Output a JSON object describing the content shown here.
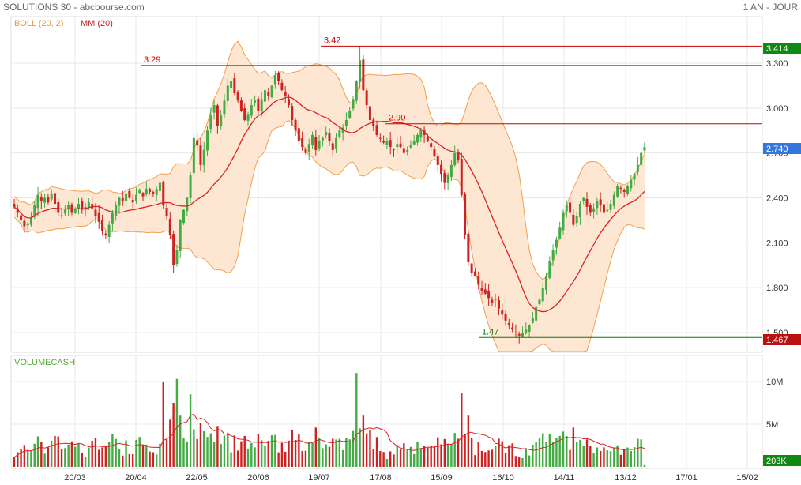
{
  "header": {
    "title": "SOLUTIONS 30 - abcbourse.com",
    "period": "1 AN - JOUR"
  },
  "legend": {
    "boll_label": "BOLL (20, 2)",
    "mm_label": "MM (20)",
    "volume_label": "VOLUMECASH"
  },
  "colors": {
    "up": "#44aa44",
    "down": "#cc2222",
    "ma": "#dd2222",
    "band_fill": "#fde7d2",
    "band_line": "#f0a050",
    "grid": "#e8e8e8",
    "last_price_badge": "#3377dd",
    "high_badge": "#118811",
    "low_badge": "#bb1111",
    "volume_badge": "#118811"
  },
  "chart_data": {
    "type": "candlestick",
    "price_ylim": [
      1.44,
      3.45
    ],
    "price_ticks": [
      "3.300",
      "3.000",
      "2.700",
      "2.400",
      "2.100",
      "1.800",
      "1.500"
    ],
    "volume_ylim": [
      0,
      13000000
    ],
    "volume_ticks": [
      "10M",
      "5M"
    ],
    "x_ticks": [
      "20/03",
      "20/04",
      "22/05",
      "20/06",
      "19/07",
      "17/08",
      "15/09",
      "16/10",
      "14/11",
      "13/12",
      "17/01",
      "15/02"
    ],
    "last_price": "2.740",
    "high_badge": "3.414",
    "low_badge": "1.467",
    "last_volume": "203K",
    "levels": [
      {
        "label": "3.29",
        "value": 3.285,
        "color": "#cc0000"
      },
      {
        "label": "3.42",
        "value": 3.414,
        "color": "#cc0000"
      },
      {
        "label": "2.90",
        "value": 2.895,
        "color": "#cc0000"
      },
      {
        "label": "1.47",
        "value": 1.467,
        "color": "#117711"
      }
    ],
    "closes": [
      2.34,
      2.3,
      2.25,
      2.21,
      2.23,
      2.27,
      2.35,
      2.42,
      2.38,
      2.4,
      2.37,
      2.43,
      2.36,
      2.3,
      2.28,
      2.32,
      2.35,
      2.3,
      2.33,
      2.36,
      2.32,
      2.34,
      2.37,
      2.33,
      2.28,
      2.24,
      2.18,
      2.15,
      2.22,
      2.3,
      2.35,
      2.4,
      2.38,
      2.43,
      2.4,
      2.37,
      2.42,
      2.45,
      2.41,
      2.46,
      2.44,
      2.43,
      2.46,
      2.5,
      2.35,
      2.28,
      2.15,
      1.95,
      2.05,
      2.25,
      2.32,
      2.4,
      2.55,
      2.8,
      2.75,
      2.62,
      2.72,
      2.85,
      2.95,
      3.02,
      2.88,
      2.95,
      3.05,
      3.15,
      3.18,
      3.1,
      3.05,
      2.98,
      2.92,
      2.96,
      3.02,
      3.05,
      2.98,
      3.06,
      3.12,
      3.08,
      3.15,
      3.22,
      3.18,
      3.12,
      3.08,
      3.02,
      2.92,
      2.85,
      2.78,
      2.74,
      2.7,
      2.76,
      2.82,
      2.72,
      2.78,
      2.8,
      2.84,
      2.78,
      2.72,
      2.8,
      2.85,
      2.87,
      2.92,
      2.98,
      3.06,
      3.18,
      3.32,
      3.12,
      3.02,
      2.92,
      2.88,
      2.82,
      2.8,
      2.77,
      2.78,
      2.74,
      2.72,
      2.76,
      2.74,
      2.7,
      2.72,
      2.75,
      2.78,
      2.82,
      2.85,
      2.82,
      2.78,
      2.74,
      2.68,
      2.62,
      2.56,
      2.5,
      2.55,
      2.62,
      2.7,
      2.65,
      2.42,
      2.15,
      1.97,
      1.9,
      1.88,
      1.82,
      1.78,
      1.76,
      1.73,
      1.7,
      1.72,
      1.66,
      1.62,
      1.58,
      1.55,
      1.52,
      1.5,
      1.48,
      1.5,
      1.52,
      1.55,
      1.6,
      1.67,
      1.72,
      1.8,
      1.88,
      1.98,
      2.05,
      2.12,
      2.2,
      2.3,
      2.35,
      2.3,
      2.22,
      2.28,
      2.36,
      2.4,
      2.34,
      2.3,
      2.33,
      2.38,
      2.35,
      2.3,
      2.32,
      2.36,
      2.42,
      2.48,
      2.46,
      2.44,
      2.48,
      2.52,
      2.56,
      2.62,
      2.7,
      2.74
    ]
  }
}
